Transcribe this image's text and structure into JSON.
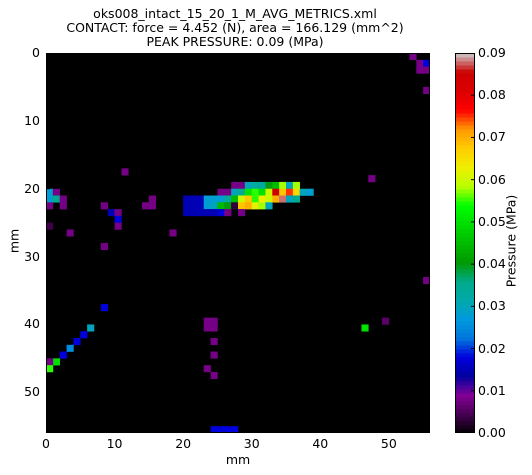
{
  "chart_data": {
    "type": "heatmap",
    "title_lines": [
      "oks008_intact_15_20_1_M_AVG_METRICS.xml",
      "CONTACT: force = 4.452 (N), area = 166.129 (mm^2)",
      "PEAK PRESSURE: 0.09 (MPa)"
    ],
    "xlabel": "mm",
    "ylabel": "mm",
    "colorbar_label": "Pressure (MPa)",
    "x_ticks": [
      "0",
      "10",
      "20",
      "30",
      "40",
      "50"
    ],
    "y_ticks": [
      "0",
      "10",
      "20",
      "30",
      "40",
      "50"
    ],
    "colorbar_ticks": [
      "0.00",
      "0.01",
      "0.02",
      "0.03",
      "0.04",
      "0.05",
      "0.06",
      "0.07",
      "0.08",
      "0.09"
    ],
    "xlim": [
      0,
      56
    ],
    "ylim": [
      56,
      0
    ],
    "vmin": 0,
    "vmax": 0.09,
    "colormap": "nipy_spectral",
    "background": "#000000",
    "grid": false,
    "cells": [
      [
        53,
        0,
        0.008
      ],
      [
        54,
        1,
        0.008
      ],
      [
        55,
        1,
        0.018
      ],
      [
        54,
        2,
        0.008
      ],
      [
        55,
        2,
        0.008
      ],
      [
        55,
        5,
        0.008
      ],
      [
        11,
        17,
        0.008
      ],
      [
        47,
        18,
        0.008
      ],
      [
        27,
        19,
        0.008
      ],
      [
        28,
        19,
        0.008
      ],
      [
        29,
        19,
        0.03
      ],
      [
        30,
        19,
        0.033
      ],
      [
        31,
        19,
        0.033
      ],
      [
        32,
        19,
        0.04
      ],
      [
        33,
        19,
        0.045
      ],
      [
        34,
        19,
        0.058
      ],
      [
        35,
        19,
        0.03
      ],
      [
        36,
        19,
        0.058
      ],
      [
        0,
        20,
        0.028
      ],
      [
        1,
        20,
        0.008
      ],
      [
        25,
        20,
        0.008
      ],
      [
        26,
        20,
        0.008
      ],
      [
        27,
        20,
        0.03
      ],
      [
        28,
        20,
        0.035
      ],
      [
        29,
        20,
        0.05
      ],
      [
        30,
        20,
        0.055
      ],
      [
        31,
        20,
        0.05
      ],
      [
        32,
        20,
        0.06
      ],
      [
        33,
        20,
        0.085
      ],
      [
        34,
        20,
        0.068
      ],
      [
        35,
        20,
        0.075
      ],
      [
        36,
        20,
        0.066
      ],
      [
        37,
        20,
        0.03
      ],
      [
        38,
        20,
        0.028
      ],
      [
        0,
        21,
        0.028
      ],
      [
        1,
        21,
        0.035
      ],
      [
        2,
        21,
        0.008
      ],
      [
        15,
        21,
        0.008
      ],
      [
        20,
        21,
        0.015
      ],
      [
        21,
        21,
        0.015
      ],
      [
        22,
        21,
        0.015
      ],
      [
        23,
        21,
        0.028
      ],
      [
        24,
        21,
        0.028
      ],
      [
        25,
        21,
        0.028
      ],
      [
        26,
        21,
        0.033
      ],
      [
        27,
        21,
        0.045
      ],
      [
        28,
        21,
        0.06
      ],
      [
        29,
        21,
        0.068
      ],
      [
        30,
        21,
        0.055
      ],
      [
        31,
        21,
        0.063
      ],
      [
        32,
        21,
        0.06
      ],
      [
        33,
        21,
        0.07
      ],
      [
        34,
        21,
        0.088
      ],
      [
        35,
        21,
        0.03
      ],
      [
        36,
        21,
        0.035
      ],
      [
        0,
        22,
        0.008
      ],
      [
        2,
        22,
        0.008
      ],
      [
        8,
        22,
        0.008
      ],
      [
        14,
        22,
        0.008
      ],
      [
        15,
        22,
        0.008
      ],
      [
        20,
        22,
        0.015
      ],
      [
        21,
        22,
        0.015
      ],
      [
        22,
        22,
        0.015
      ],
      [
        23,
        22,
        0.028
      ],
      [
        24,
        22,
        0.03
      ],
      [
        25,
        22,
        0.045
      ],
      [
        26,
        22,
        0.04
      ],
      [
        27,
        22,
        0.003
      ],
      [
        28,
        22,
        0.068
      ],
      [
        29,
        22,
        0.07
      ],
      [
        30,
        22,
        0.062
      ],
      [
        31,
        22,
        0.058
      ],
      [
        32,
        22,
        0.03
      ],
      [
        9,
        23,
        0.015
      ],
      [
        10,
        23,
        0.008
      ],
      [
        20,
        23,
        0.015
      ],
      [
        21,
        23,
        0.015
      ],
      [
        22,
        23,
        0.015
      ],
      [
        23,
        23,
        0.015
      ],
      [
        24,
        23,
        0.015
      ],
      [
        25,
        23,
        0.018
      ],
      [
        26,
        23,
        0.008
      ],
      [
        28,
        23,
        0.008
      ],
      [
        10,
        24,
        0.018
      ],
      [
        0,
        25,
        0.004
      ],
      [
        10,
        25,
        0.008
      ],
      [
        3,
        26,
        0.008
      ],
      [
        18,
        26,
        0.008
      ],
      [
        8,
        28,
        0.008
      ],
      [
        55,
        33,
        0.008
      ],
      [
        8,
        37,
        0.018
      ],
      [
        23,
        39,
        0.008
      ],
      [
        24,
        39,
        0.008
      ],
      [
        49,
        39,
        0.006
      ],
      [
        6,
        40,
        0.03
      ],
      [
        23,
        40,
        0.008
      ],
      [
        24,
        40,
        0.008
      ],
      [
        46,
        40,
        0.05
      ],
      [
        5,
        41,
        0.018
      ],
      [
        4,
        42,
        0.018
      ],
      [
        24,
        42,
        0.008
      ],
      [
        3,
        43,
        0.025
      ],
      [
        2,
        44,
        0.018
      ],
      [
        24,
        44,
        0.008
      ],
      [
        1,
        45,
        0.05
      ],
      [
        0,
        45,
        0.008
      ],
      [
        0,
        46,
        0.055
      ],
      [
        23,
        46,
        0.008
      ],
      [
        24,
        47,
        0.008
      ],
      [
        24,
        55,
        0.018
      ],
      [
        25,
        55,
        0.018
      ],
      [
        26,
        55,
        0.018
      ],
      [
        27,
        55,
        0.018
      ]
    ]
  }
}
